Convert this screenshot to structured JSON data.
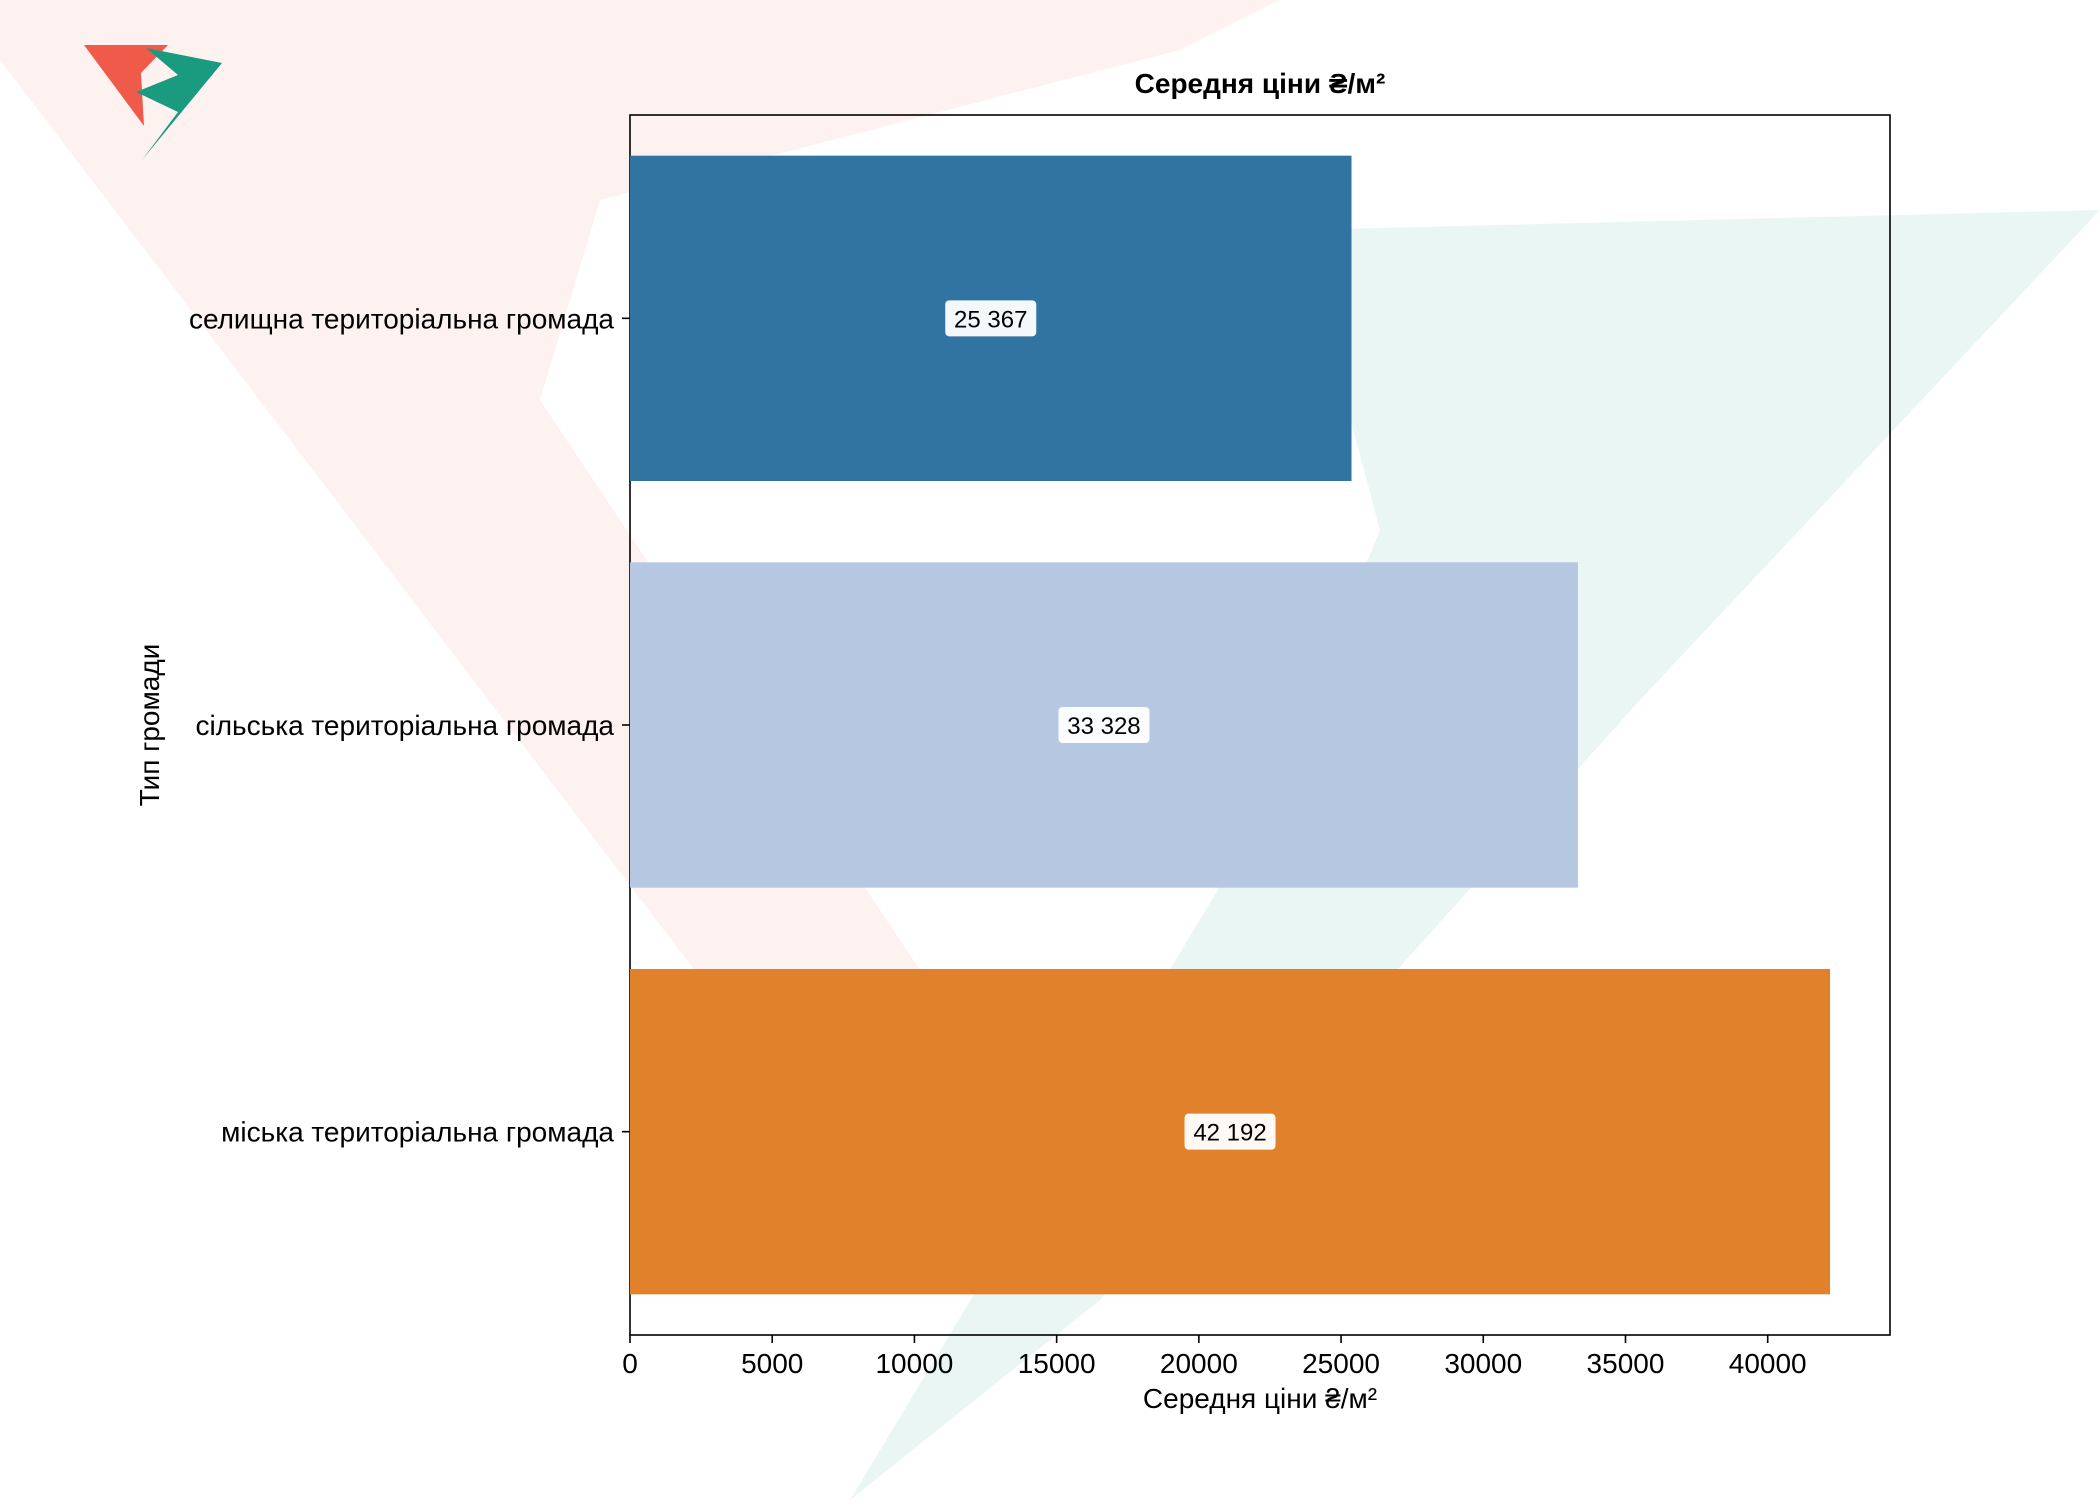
{
  "chart_data": {
    "type": "bar",
    "orientation": "horizontal",
    "title": "Середня ціни ₴/м²",
    "xlabel": "Середня ціни ₴/м²",
    "ylabel": "Тип громади",
    "categories": [
      "селищна територіальна громада",
      "сільська територіальна громада",
      "міська територіальна громада"
    ],
    "values": [
      25367,
      33328,
      42192
    ],
    "value_labels": [
      "25 367",
      "33 328",
      "42 192"
    ],
    "bar_colors": [
      "#3274a1",
      "#b5c7e1",
      "#e1812c"
    ],
    "xlim": [
      0,
      44300
    ],
    "xticks": [
      0,
      5000,
      10000,
      15000,
      20000,
      25000,
      30000,
      35000,
      40000
    ],
    "xtick_labels": [
      "0",
      "5000",
      "10000",
      "15000",
      "20000",
      "25000",
      "30000",
      "35000",
      "40000"
    ],
    "grid": false,
    "legend": "none"
  },
  "watermark": {
    "red": "#f05a4a",
    "green": "#1a9a7e"
  }
}
